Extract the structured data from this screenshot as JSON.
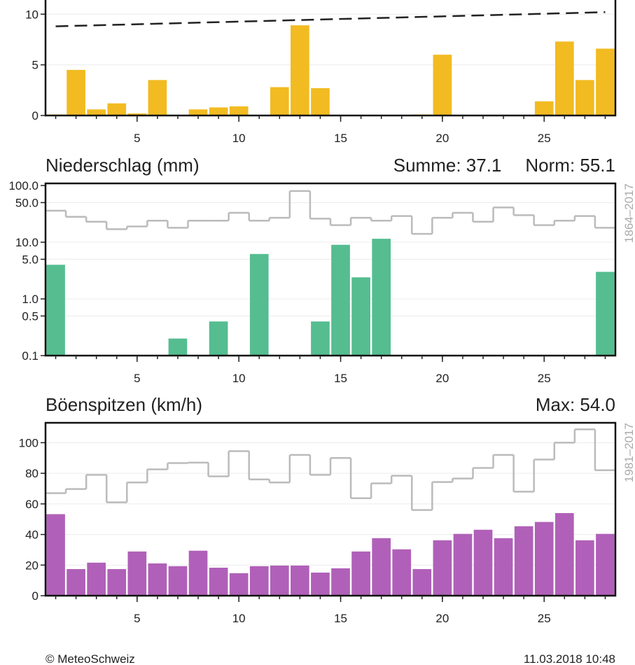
{
  "chart_data": [
    {
      "type": "bar",
      "x": [
        1,
        2,
        3,
        4,
        5,
        6,
        7,
        8,
        9,
        10,
        11,
        12,
        13,
        14,
        15,
        16,
        17,
        18,
        19,
        20,
        21,
        22,
        23,
        24,
        25,
        26,
        27,
        28
      ],
      "values": [
        0.1,
        4.5,
        0.6,
        1.2,
        0.2,
        3.5,
        0,
        0.6,
        0.8,
        0.9,
        0,
        2.8,
        8.9,
        2.7,
        0,
        0,
        0,
        0,
        0.1,
        6.0,
        0,
        0,
        0,
        0,
        1.4,
        7.3,
        3.5,
        6.6
      ],
      "color": "#f2bb22",
      "norm": {
        "x": [
          1,
          28
        ],
        "values": [
          8.8,
          10.2
        ],
        "color": "#222222",
        "dashed": true
      },
      "xlim": [
        0.5,
        28.5
      ],
      "xticks": [
        5,
        10,
        15,
        20,
        25
      ],
      "ylim": [
        0,
        11.4
      ],
      "yticks": [
        0,
        5,
        10
      ],
      "grid": true
    },
    {
      "type": "bar",
      "title": "Niederschlag (mm)",
      "annotations": [
        "Summe: 37.1",
        "Norm: 55.1"
      ],
      "norm_period": "1864–2017",
      "x": [
        1,
        2,
        3,
        4,
        5,
        6,
        7,
        8,
        9,
        10,
        11,
        12,
        13,
        14,
        15,
        16,
        17,
        18,
        19,
        20,
        21,
        22,
        23,
        24,
        25,
        26,
        27,
        28
      ],
      "values": [
        4.0,
        0,
        0,
        0,
        0,
        0,
        0.2,
        0,
        0.4,
        0,
        6.2,
        0,
        0,
        0.4,
        9.0,
        2.4,
        11.5,
        0,
        0,
        0,
        0,
        0,
        0,
        0,
        0,
        0,
        0,
        3.0
      ],
      "color": "#55bd90",
      "norm": {
        "values": [
          36,
          28,
          23,
          17,
          19,
          24,
          18,
          24,
          24,
          33,
          24,
          27,
          80,
          26,
          20,
          27,
          24,
          29,
          14,
          27,
          33,
          23,
          41,
          30,
          20,
          24,
          29,
          18
        ],
        "color": "#bbbbbb",
        "step": true
      },
      "xlim": [
        0.5,
        28.5
      ],
      "xticks": [
        5,
        10,
        15,
        20,
        25
      ],
      "yscale": "log",
      "ylim": [
        0.1,
        109
      ],
      "yticks": [
        0.1,
        0.5,
        {
          "value": 1,
          "label": "1.0"
        },
        {
          "value": 5,
          "label": "5.0"
        },
        {
          "value": 10,
          "label": "10.0"
        },
        {
          "value": 50,
          "label": "50.0"
        },
        {
          "value": 100,
          "label": "100.0"
        }
      ],
      "grid": true
    },
    {
      "type": "bar",
      "title": "Böenspitzen (km/h)",
      "annotations": [
        "Max: 54.0"
      ],
      "norm_period": "1981–2017",
      "x": [
        1,
        2,
        3,
        4,
        5,
        6,
        7,
        8,
        9,
        10,
        11,
        12,
        13,
        14,
        15,
        16,
        17,
        18,
        19,
        20,
        21,
        22,
        23,
        24,
        25,
        26,
        27,
        28
      ],
      "values": [
        53.3,
        17.4,
        21.6,
        17.4,
        28.9,
        21.1,
        19.3,
        29.4,
        18.3,
        14.7,
        19.3,
        19.7,
        19.7,
        15.1,
        17.9,
        28.9,
        37.6,
        30.3,
        17.4,
        36.2,
        40.4,
        43.1,
        37.6,
        45.4,
        48.2,
        54.0,
        36.2,
        40.4
      ],
      "color": "#b060b8",
      "norm": {
        "values": [
          67,
          69.7,
          79,
          61,
          74,
          82.6,
          86.7,
          87,
          78,
          94.5,
          76,
          74,
          92,
          79,
          90,
          63.7,
          73.4,
          78.4,
          56,
          74.3,
          76.6,
          83.5,
          92,
          68,
          89,
          100,
          108.7,
          82
        ],
        "color": "#bbbbbb",
        "step": true
      },
      "xlim": [
        0.5,
        28.5
      ],
      "xticks": [
        5,
        10,
        15,
        20,
        25
      ],
      "ylim": [
        0,
        113
      ],
      "yticks": [
        0,
        20,
        40,
        60,
        80,
        100
      ],
      "grid": true
    }
  ],
  "footer": {
    "copyright": "© MeteoSchweiz",
    "timestamp": "11.03.2018 10:48"
  }
}
